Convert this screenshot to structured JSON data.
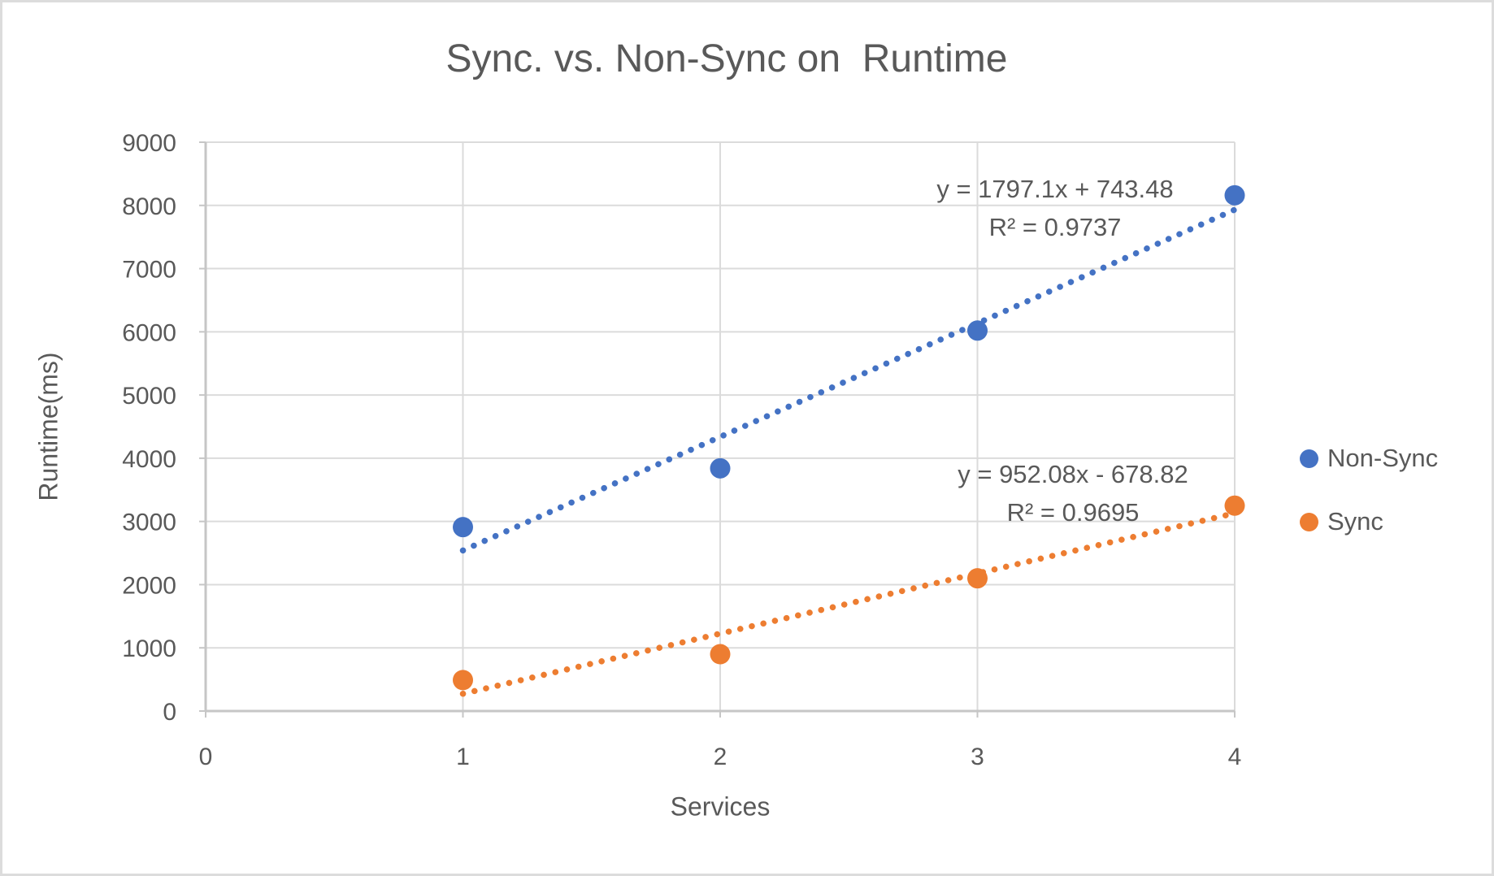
{
  "chart_data": {
    "type": "scatter",
    "title": "Sync. vs. Non-Sync on  Runtime",
    "xlabel": "Services",
    "ylabel": "Runtime(ms)",
    "xlim": [
      0,
      4
    ],
    "ylim": [
      0,
      9000
    ],
    "xticks": [
      0,
      1,
      2,
      3,
      4
    ],
    "yticks": [
      0,
      1000,
      2000,
      3000,
      4000,
      5000,
      6000,
      7000,
      8000,
      9000
    ],
    "grid": true,
    "legend_position": "right",
    "x": [
      1,
      2,
      3,
      4
    ],
    "series": [
      {
        "name": "Non-Sync",
        "color": "#4472C4",
        "values": [
          2910,
          3840,
          6020,
          8160
        ],
        "trendline": {
          "style": "dotted",
          "slope": 1797.1,
          "intercept": 743.48,
          "x_start": 1,
          "x_end": 4,
          "equation": "y = 1797.1x + 743.48",
          "r2": "R² = 0.9737"
        }
      },
      {
        "name": "Sync",
        "color": "#ED7D31",
        "values": [
          490,
          900,
          2100,
          3250
        ],
        "trendline": {
          "style": "dotted",
          "slope": 952.08,
          "intercept": -678.82,
          "x_start": 1,
          "x_end": 4,
          "equation": "y = 952.08x - 678.82",
          "r2": "R² = 0.9695"
        }
      }
    ],
    "colors": {
      "grid": "#DBDBDB",
      "axis": "#C6C6C6",
      "text": "#595959"
    }
  }
}
